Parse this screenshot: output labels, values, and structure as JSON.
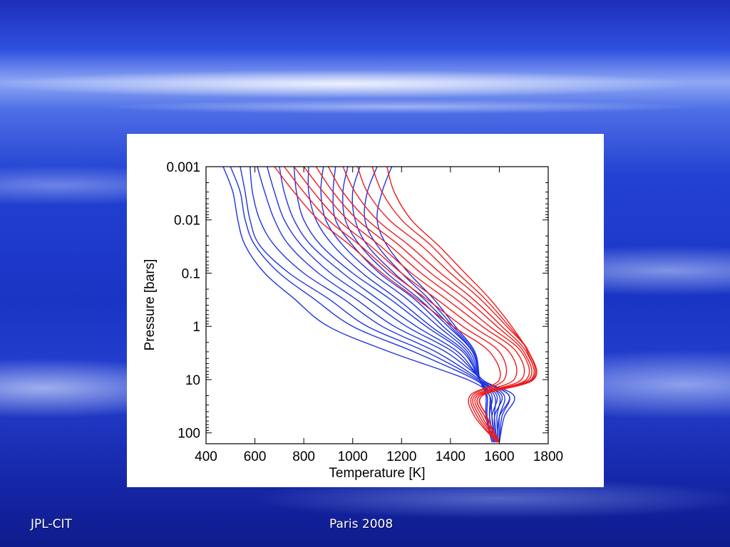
{
  "footer": {
    "left": "JPL-CIT",
    "center": "Paris 2008"
  },
  "chart_data": {
    "type": "line",
    "xlabel": "Temperature [K]",
    "ylabel": "Pressure [bars]",
    "xlim": [
      400,
      1800
    ],
    "ylim": [
      0.001,
      160
    ],
    "yscale": "log",
    "y_inverted": true,
    "x_ticks": [
      400,
      600,
      800,
      1000,
      1200,
      1400,
      1600,
      1800
    ],
    "y_ticks": [
      0.001,
      0.01,
      0.1,
      1,
      10,
      100
    ],
    "y_tick_labels": [
      "0.001",
      "0.01",
      "0.1",
      "1",
      "10",
      "100"
    ],
    "grid": false,
    "series_colors": {
      "blue": "#1f35e0",
      "red": "#ee1c1c"
    },
    "pressure_levels": [
      0.001,
      0.003,
      0.01,
      0.03,
      0.1,
      0.3,
      1,
      3,
      10,
      20,
      50,
      150
    ],
    "series": [
      {
        "color": "blue",
        "values": [
          470,
          510,
          530,
          560,
          640,
          760,
          900,
          1150,
          1470,
          1560,
          1560,
          1580
        ]
      },
      {
        "color": "blue",
        "values": [
          500,
          540,
          560,
          600,
          700,
          840,
          1000,
          1250,
          1500,
          1560,
          1570,
          1585
        ]
      },
      {
        "color": "blue",
        "values": [
          540,
          560,
          580,
          620,
          740,
          900,
          1060,
          1300,
          1510,
          1580,
          1580,
          1590
        ]
      },
      {
        "color": "blue",
        "values": [
          580,
          590,
          620,
          680,
          800,
          960,
          1120,
          1340,
          1520,
          1600,
          1590,
          1595
        ]
      },
      {
        "color": "blue",
        "values": [
          610,
          640,
          680,
          740,
          860,
          1010,
          1170,
          1380,
          1530,
          1620,
          1600,
          1600
        ]
      },
      {
        "color": "blue",
        "values": [
          650,
          680,
          720,
          790,
          910,
          1060,
          1220,
          1410,
          1530,
          1640,
          1610,
          1600
        ]
      },
      {
        "color": "blue",
        "values": [
          700,
          720,
          760,
          830,
          960,
          1100,
          1260,
          1430,
          1530,
          1660,
          1620,
          1600
        ]
      },
      {
        "color": "blue",
        "values": [
          760,
          770,
          800,
          870,
          1000,
          1150,
          1300,
          1450,
          1530,
          1640,
          1600,
          1590
        ]
      },
      {
        "color": "blue",
        "values": [
          820,
          820,
          850,
          920,
          1040,
          1180,
          1320,
          1460,
          1520,
          1610,
          1580,
          1590
        ]
      },
      {
        "color": "blue",
        "values": [
          880,
          870,
          890,
          960,
          1080,
          1220,
          1350,
          1470,
          1520,
          1590,
          1570,
          1585
        ]
      },
      {
        "color": "blue",
        "values": [
          930,
          920,
          930,
          1000,
          1110,
          1250,
          1370,
          1480,
          1520,
          1570,
          1560,
          1580
        ]
      },
      {
        "color": "blue",
        "values": [
          980,
          960,
          970,
          1030,
          1140,
          1270,
          1390,
          1490,
          1520,
          1560,
          1560,
          1580
        ]
      },
      {
        "color": "blue",
        "values": [
          1030,
          1000,
          1010,
          1060,
          1170,
          1290,
          1400,
          1490,
          1520,
          1550,
          1550,
          1575
        ]
      },
      {
        "color": "blue",
        "values": [
          1100,
          1060,
          1050,
          1100,
          1200,
          1310,
          1410,
          1495,
          1520,
          1550,
          1550,
          1575
        ]
      },
      {
        "color": "blue",
        "values": [
          1160,
          1120,
          1100,
          1140,
          1230,
          1330,
          1420,
          1500,
          1520,
          1545,
          1545,
          1570
        ]
      },
      {
        "color": "red",
        "values": [
          680,
          760,
          860,
          990,
          1120,
          1260,
          1410,
          1560,
          1600,
          1480,
          1500,
          1590
        ]
      },
      {
        "color": "red",
        "values": [
          720,
          800,
          900,
          1030,
          1160,
          1300,
          1450,
          1600,
          1620,
          1490,
          1510,
          1590
        ]
      },
      {
        "color": "red",
        "values": [
          760,
          840,
          940,
          1070,
          1200,
          1340,
          1490,
          1640,
          1660,
          1500,
          1520,
          1595
        ]
      },
      {
        "color": "red",
        "values": [
          800,
          880,
          980,
          1110,
          1240,
          1380,
          1530,
          1670,
          1690,
          1510,
          1530,
          1595
        ]
      },
      {
        "color": "red",
        "values": [
          850,
          920,
          1020,
          1150,
          1280,
          1420,
          1560,
          1690,
          1710,
          1520,
          1540,
          1600
        ]
      },
      {
        "color": "red",
        "values": [
          900,
          960,
          1060,
          1190,
          1320,
          1460,
          1590,
          1700,
          1720,
          1520,
          1540,
          1600
        ]
      },
      {
        "color": "red",
        "values": [
          960,
          1010,
          1100,
          1230,
          1360,
          1490,
          1610,
          1710,
          1730,
          1530,
          1550,
          1600
        ]
      },
      {
        "color": "red",
        "values": [
          1020,
          1060,
          1150,
          1280,
          1400,
          1520,
          1630,
          1720,
          1740,
          1530,
          1550,
          1600
        ]
      },
      {
        "color": "red",
        "values": [
          1080,
          1120,
          1200,
          1320,
          1430,
          1540,
          1640,
          1720,
          1735,
          1530,
          1550,
          1600
        ]
      },
      {
        "color": "red",
        "values": [
          1140,
          1170,
          1240,
          1350,
          1460,
          1560,
          1650,
          1715,
          1730,
          1530,
          1550,
          1600
        ]
      }
    ]
  }
}
